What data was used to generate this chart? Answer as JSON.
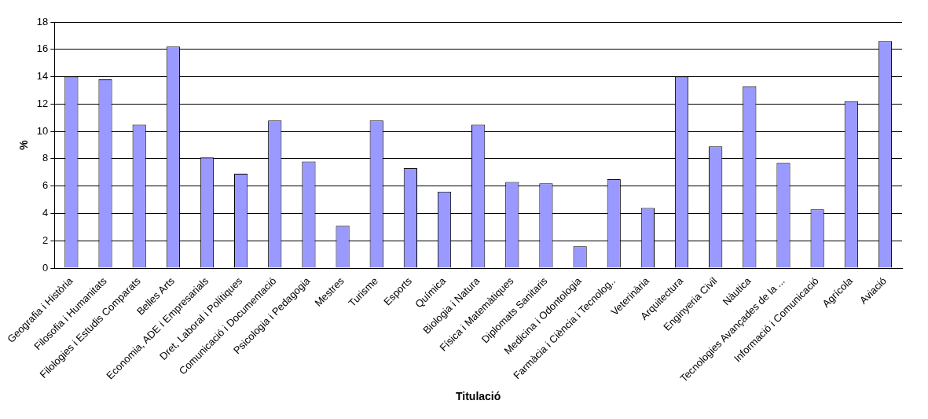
{
  "chart_data": {
    "type": "bar",
    "xlabel": "Titulació",
    "ylabel": "%",
    "categories": [
      "Geografia i Història",
      "Filosofia i Humanitats",
      "Filologies i Estudis Comparats",
      "Belles Arts",
      "Economia, ADE i Empresarials",
      "Dret, Laboral i Polítiques",
      "Comunicació i Documentació",
      "Psicologia i Pedagogia",
      "Mestres",
      "Turisme",
      "Esports",
      "Química",
      "Biologia i Natura",
      "Física i Matemàtiques",
      "Diplomats Sanitaris",
      "Medicina i Odontologia",
      "Farmàcia i Ciència i Tecnolog..",
      "Veterinària",
      "Arquitectura",
      "Enginyeria Civil",
      "Nàutica",
      "Tecnologies Avançades de la ...",
      "Informació i Comunicació",
      "Agrícola",
      "Aviació"
    ],
    "values": [
      14.0,
      13.8,
      10.5,
      16.2,
      8.1,
      6.9,
      10.8,
      7.8,
      3.1,
      10.8,
      7.3,
      5.6,
      10.5,
      6.3,
      6.2,
      1.6,
      6.5,
      4.4,
      14.0,
      8.9,
      13.3,
      7.7,
      4.3,
      12.2,
      16.6
    ],
    "color": "#9999ff",
    "ylim": [
      0,
      18
    ],
    "yticks": [
      0,
      2,
      4,
      6,
      8,
      10,
      12,
      14,
      16,
      18
    ],
    "grid": "y"
  }
}
